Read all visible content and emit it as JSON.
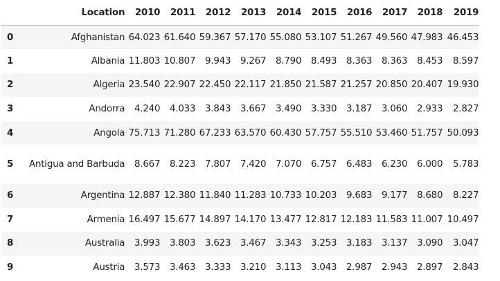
{
  "table": {
    "index_header": "",
    "headers": [
      "Location",
      "2010",
      "2011",
      "2012",
      "2013",
      "2014",
      "2015",
      "2016",
      "2017",
      "2018",
      "2019"
    ],
    "rows": [
      {
        "index": "0",
        "location": "Afghanistan",
        "values": [
          "64.023",
          "61.640",
          "59.367",
          "57.170",
          "55.080",
          "53.107",
          "51.267",
          "49.560",
          "47.983",
          "46.453"
        ]
      },
      {
        "index": "1",
        "location": "Albania",
        "values": [
          "11.803",
          "10.807",
          "9.943",
          "9.267",
          "8.790",
          "8.493",
          "8.363",
          "8.363",
          "8.453",
          "8.597"
        ]
      },
      {
        "index": "2",
        "location": "Algeria",
        "values": [
          "23.540",
          "22.907",
          "22.450",
          "22.117",
          "21.850",
          "21.587",
          "21.257",
          "20.850",
          "20.407",
          "19.930"
        ]
      },
      {
        "index": "3",
        "location": "Andorra",
        "values": [
          "4.240",
          "4.033",
          "3.843",
          "3.667",
          "3.490",
          "3.330",
          "3.187",
          "3.060",
          "2.933",
          "2.827"
        ]
      },
      {
        "index": "4",
        "location": "Angola",
        "values": [
          "75.713",
          "71.280",
          "67.233",
          "63.570",
          "60.430",
          "57.757",
          "55.510",
          "53.460",
          "51.757",
          "50.093"
        ]
      },
      {
        "index": "5",
        "location": "Antigua and Barbuda",
        "values": [
          "8.667",
          "8.223",
          "7.807",
          "7.420",
          "7.070",
          "6.757",
          "6.483",
          "6.230",
          "6.000",
          "5.783"
        ]
      },
      {
        "index": "6",
        "location": "Argentina",
        "values": [
          "12.887",
          "12.380",
          "11.840",
          "11.283",
          "10.733",
          "10.203",
          "9.683",
          "9.177",
          "8.680",
          "8.227"
        ]
      },
      {
        "index": "7",
        "location": "Armenia",
        "values": [
          "16.497",
          "15.677",
          "14.897",
          "14.170",
          "13.477",
          "12.817",
          "12.183",
          "11.583",
          "11.007",
          "10.497"
        ]
      },
      {
        "index": "8",
        "location": "Australia",
        "values": [
          "3.993",
          "3.803",
          "3.623",
          "3.467",
          "3.343",
          "3.253",
          "3.183",
          "3.137",
          "3.090",
          "3.047"
        ]
      },
      {
        "index": "9",
        "location": "Austria",
        "values": [
          "3.573",
          "3.463",
          "3.333",
          "3.210",
          "3.113",
          "3.043",
          "2.987",
          "2.943",
          "2.897",
          "2.843"
        ]
      }
    ]
  }
}
